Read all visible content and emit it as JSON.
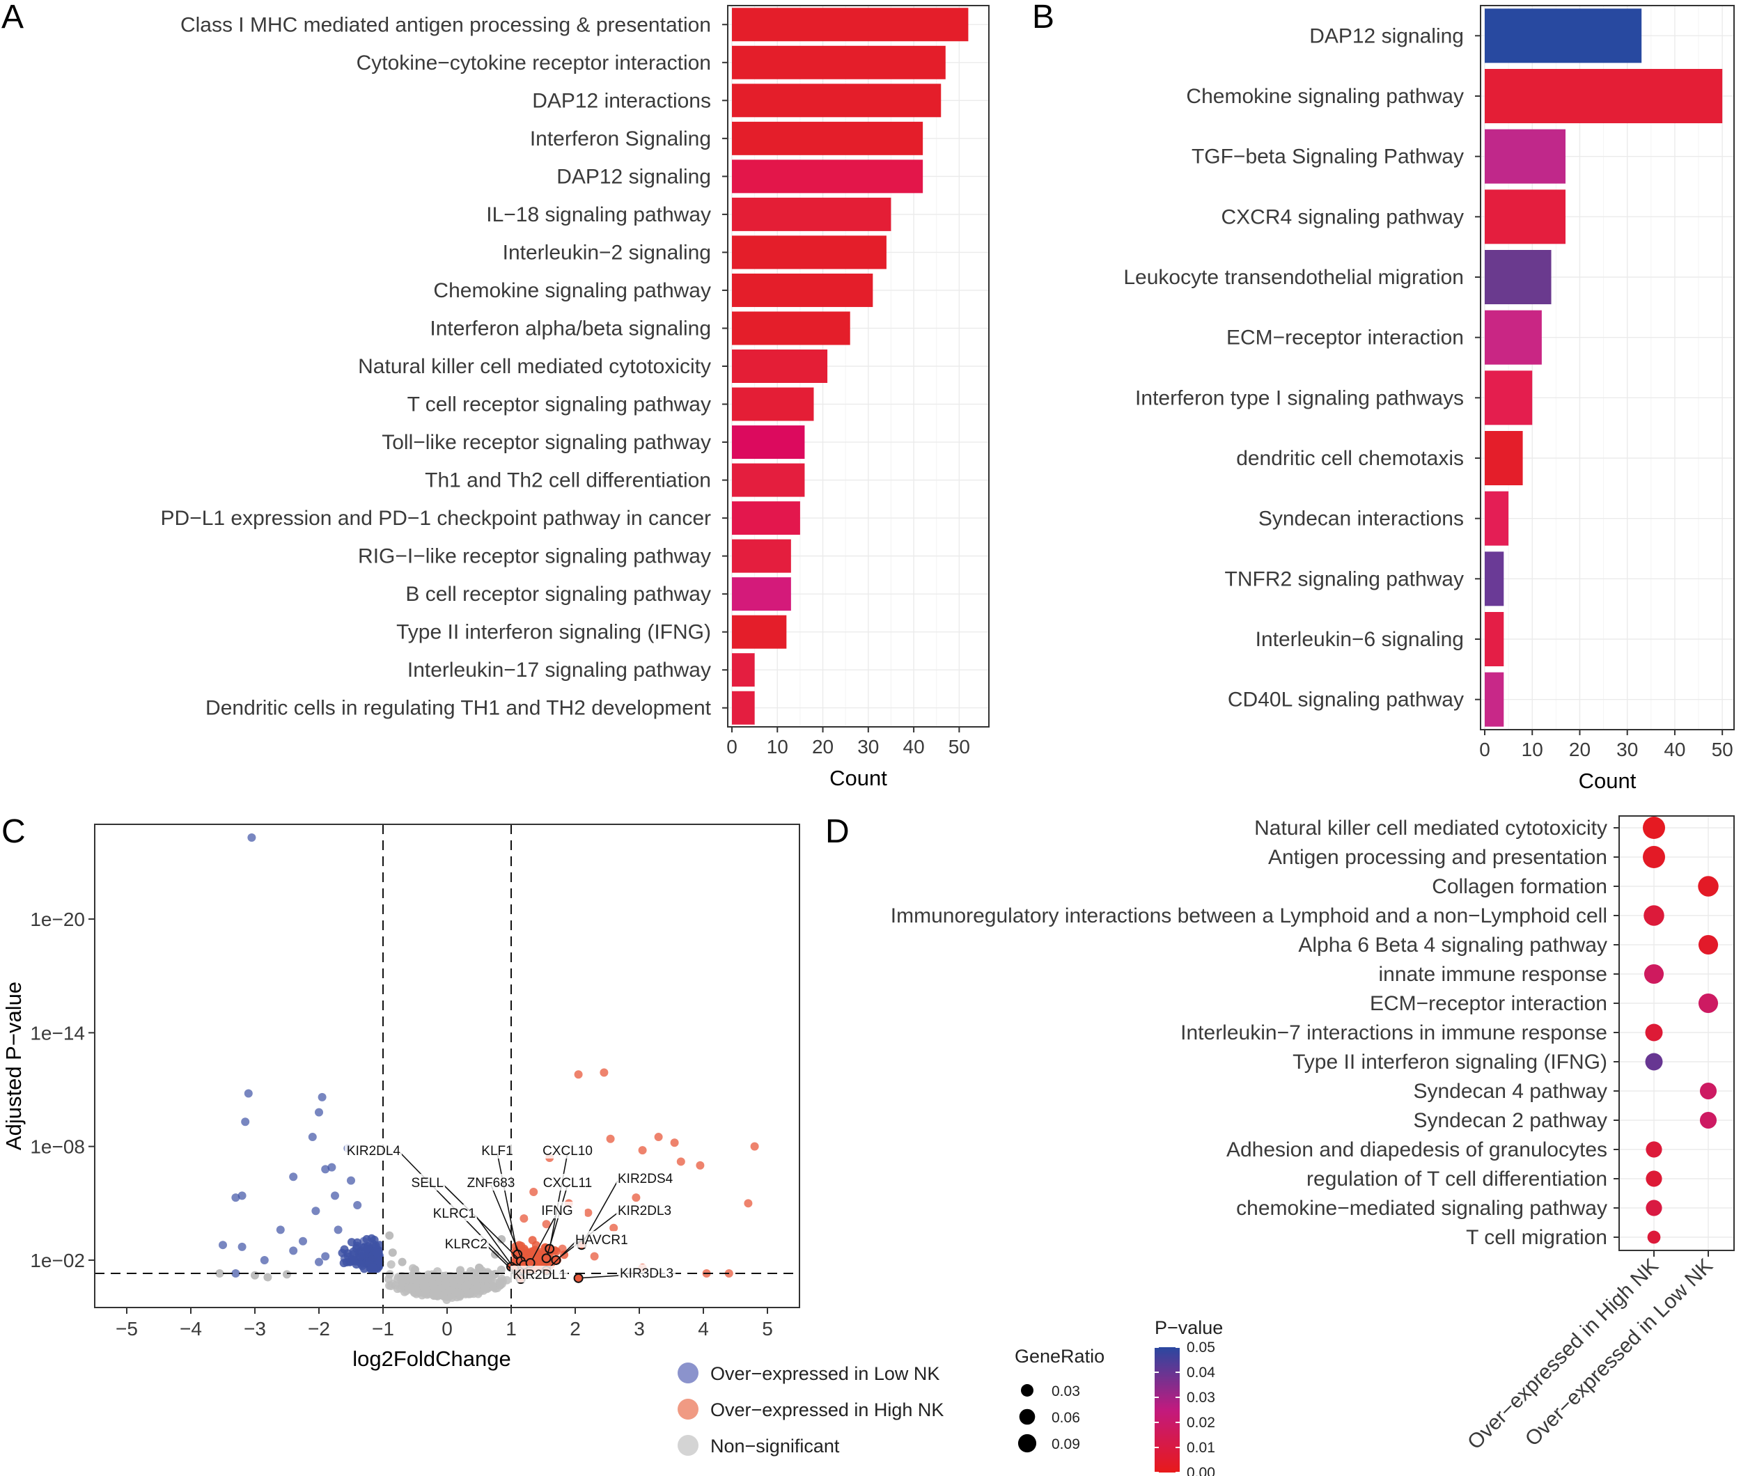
{
  "panels": {
    "A": {
      "label": "A",
      "chart_data": {
        "type": "bar",
        "orientation": "horizontal",
        "categories": [
          "Class I MHC mediated antigen processing & presentation",
          "Cytokine−cytokine receptor interaction",
          "DAP12 interactions",
          "Interferon Signaling",
          "DAP12 signaling",
          "IL−18 signaling pathway",
          "Interleukin−2 signaling",
          "Chemokine signaling pathway",
          "Interferon alpha/beta signaling",
          "Natural killer cell mediated cytotoxicity",
          "T cell receptor signaling pathway",
          "Toll−like receptor signaling pathway",
          "Th1 and Th2 cell differentiation",
          "PD−L1 expression and PD−1 checkpoint pathway in cancer",
          "RIG−I−like receptor signaling pathway",
          "B cell receptor signaling pathway",
          "Type II interferon signaling (IFNG)",
          "Interleukin−17 signaling pathway",
          "Dendritic cells in regulating TH1 and TH2 development"
        ],
        "values": [
          52,
          47,
          46,
          42,
          42,
          35,
          34,
          31,
          26,
          21,
          18,
          16,
          16,
          15,
          13,
          13,
          12,
          5,
          5
        ],
        "colors": [
          "#e41e2a",
          "#e41e2a",
          "#e41e2a",
          "#e41e2a",
          "#e3164a",
          "#e41e36",
          "#e41e2a",
          "#e41e2a",
          "#e41e2a",
          "#e41e36",
          "#e41e36",
          "#dc0a5e",
          "#e41e3e",
          "#e3174d",
          "#e41e3e",
          "#d41a7a",
          "#e41e2a",
          "#e41e40",
          "#e41e40"
        ],
        "xlabel": "Count",
        "ylabel": "",
        "xlim": [
          0,
          55
        ],
        "xticks": [
          0,
          10,
          20,
          30,
          40,
          50
        ]
      }
    },
    "B": {
      "label": "B",
      "chart_data": {
        "type": "bar",
        "orientation": "horizontal",
        "categories": [
          "DAP12 signaling",
          "Chemokine signaling pathway",
          "TGF−beta Signaling Pathway",
          "CXCR4 signaling pathway",
          "Leukocyte transendothelial migration",
          "ECM−receptor interaction",
          "Interferon type I signaling pathways",
          "dendritic cell chemotaxis",
          "Syndecan interactions",
          "TNFR2 signaling pathway",
          "Interleukin−6 signaling",
          "CD40L signaling pathway"
        ],
        "values": [
          33,
          50,
          17,
          17,
          14,
          12,
          10,
          8,
          5,
          4,
          4,
          4
        ],
        "colors": [
          "#2849a0",
          "#e41e36",
          "#c0288a",
          "#e41e3e",
          "#6a3a8e",
          "#c92684",
          "#e41e4e",
          "#e41e2a",
          "#e41e55",
          "#6a3a96",
          "#e41e46",
          "#c82888"
        ],
        "xlabel": "Count",
        "ylabel": "",
        "xlim": [
          0,
          51
        ],
        "xticks": [
          0,
          10,
          20,
          30,
          40,
          50
        ]
      }
    },
    "C": {
      "label": "C",
      "chart_data": {
        "type": "scatter",
        "title": "",
        "xlabel": "log2FoldChange",
        "ylabel": "Adjusted P−value",
        "xlim": [
          -5.5,
          5.5
        ],
        "xticks": [
          -5,
          -4,
          -3,
          -2,
          -1,
          0,
          1,
          2,
          3,
          4,
          5
        ],
        "xtick_labels": [
          "−5",
          "−4",
          "−3",
          "−2",
          "−1",
          "0",
          "1",
          "2",
          "3",
          "4",
          "5"
        ],
        "y_scale": "-log10",
        "ylim_neglog10": [
          -0.5,
          25
        ],
        "yticks_neglog10": [
          2,
          8,
          14,
          20
        ],
        "ytick_labels": [
          "1e−02",
          "1e−08",
          "1e−14",
          "1e−20"
        ],
        "thresholds": {
          "log2fc": [
            -1,
            1
          ],
          "neglog10_padj": 1.3
        },
        "series": [
          {
            "name": "Over−expressed in Low NK",
            "color": "#3e52a5",
            "points": [
              {
                "x": -3.05,
                "y": 24.3
              },
              {
                "x": -3.1,
                "y": 10.8
              },
              {
                "x": -3.15,
                "y": 9.3
              },
              {
                "x": -1.95,
                "y": 10.6
              },
              {
                "x": -2.0,
                "y": 9.8
              },
              {
                "x": -3.3,
                "y": 5.3
              },
              {
                "x": -3.2,
                "y": 5.4
              },
              {
                "x": -2.1,
                "y": 8.5
              },
              {
                "x": -1.55,
                "y": 7.9
              },
              {
                "x": -2.4,
                "y": 6.4
              },
              {
                "x": -1.9,
                "y": 6.8
              },
              {
                "x": -1.8,
                "y": 6.9
              },
              {
                "x": -2.6,
                "y": 3.6
              },
              {
                "x": -3.5,
                "y": 2.8
              },
              {
                "x": -3.2,
                "y": 2.7
              },
              {
                "x": -1.75,
                "y": 5.4
              },
              {
                "x": -1.5,
                "y": 6.2
              },
              {
                "x": -1.4,
                "y": 4.9
              },
              {
                "x": -2.85,
                "y": 2.0
              },
              {
                "x": -2.25,
                "y": 3.0
              },
              {
                "x": -2.05,
                "y": 4.6
              },
              {
                "x": -1.7,
                "y": 3.6
              },
              {
                "x": -1.3,
                "y": 3.0
              },
              {
                "x": -1.25,
                "y": 2.6
              },
              {
                "x": -1.1,
                "y": 2.4
              },
              {
                "x": -1.6,
                "y": 2.1
              },
              {
                "x": -3.3,
                "y": 1.3
              },
              {
                "x": -2.4,
                "y": 2.5
              },
              {
                "x": -1.05,
                "y": 1.9
              },
              {
                "x": -1.15,
                "y": 1.6
              },
              {
                "x": -2.0,
                "y": 1.9
              },
              {
                "x": -1.9,
                "y": 2.2
              }
            ]
          },
          {
            "name": "Over−expressed in High NK",
            "color": "#e85a3c",
            "points": [
              {
                "x": 2.05,
                "y": 11.8
              },
              {
                "x": 2.45,
                "y": 11.9
              },
              {
                "x": 3.3,
                "y": 8.5
              },
              {
                "x": 3.55,
                "y": 8.2
              },
              {
                "x": 3.65,
                "y": 7.2
              },
              {
                "x": 2.55,
                "y": 8.4
              },
              {
                "x": 3.05,
                "y": 7.8
              },
              {
                "x": 4.8,
                "y": 8.0
              },
              {
                "x": 3.95,
                "y": 7.0
              },
              {
                "x": 1.6,
                "y": 7.4
              },
              {
                "x": 2.95,
                "y": 5.3
              },
              {
                "x": 4.7,
                "y": 5.0
              },
              {
                "x": 4.05,
                "y": 1.3
              },
              {
                "x": 4.4,
                "y": 1.3
              },
              {
                "x": 1.35,
                "y": 5.6
              },
              {
                "x": 1.9,
                "y": 5.0
              },
              {
                "x": 2.2,
                "y": 4.5
              },
              {
                "x": 2.6,
                "y": 3.7
              },
              {
                "x": 1.2,
                "y": 4.2
              },
              {
                "x": 1.55,
                "y": 3.9
              },
              {
                "x": 2.3,
                "y": 2.2
              },
              {
                "x": 1.8,
                "y": 2.6
              },
              {
                "x": 3.05,
                "y": 1.6
              }
            ]
          },
          {
            "name": "Non−significant",
            "color": "#bdbdbd",
            "points": [
              {
                "x": -3.0,
                "y": 1.2
              },
              {
                "x": -2.8,
                "y": 1.1
              },
              {
                "x": -2.5,
                "y": 1.25
              },
              {
                "x": -0.85,
                "y": 2.4
              },
              {
                "x": -0.9,
                "y": 3.3
              },
              {
                "x": -0.7,
                "y": 1.9
              },
              {
                "x": 0.75,
                "y": 2.3
              },
              {
                "x": 0.85,
                "y": 3.1
              },
              {
                "x": -0.5,
                "y": 1.5
              },
              {
                "x": 0.5,
                "y": 1.6
              },
              {
                "x": -3.55,
                "y": 1.3
              }
            ]
          }
        ],
        "labeled_genes": [
          "KIR2DL4",
          "KLF1",
          "CXCL10",
          "SELL",
          "ZNF683",
          "CXCL11",
          "KIR2DS4",
          "IFNG",
          "KIR2DL3",
          "KLRC1",
          "HAVCR1",
          "KLRC2",
          "KIR2DL1",
          "KIR3DL3"
        ],
        "legend": [
          {
            "label": "Over−expressed in Low NK",
            "color": "#8b93cc"
          },
          {
            "label": "Over−expressed in High NK",
            "color": "#f09a83"
          },
          {
            "label": "Non−significant",
            "color": "#d4d4d4"
          }
        ]
      }
    },
    "D": {
      "label": "D",
      "chart_data": {
        "type": "scatter",
        "subtype": "dotplot",
        "categories": [
          "Natural killer cell mediated cytotoxicity",
          "Antigen processing and presentation",
          "Collagen formation",
          "Immunoregulatory interactions between a Lymphoid and a non−Lymphoid cell",
          "Alpha 6 Beta 4 signaling pathway",
          "innate immune response",
          "ECM−receptor interaction",
          "Interleukin−7 interactions in immune response",
          "Type II interferon signaling (IFNG)",
          "Syndecan 4 pathway",
          "Syndecan 2 pathway",
          "Adhesion and diapedesis of granulocytes",
          "regulation of T cell differentiation",
          "chemokine−mediated signaling pathway",
          "T cell migration"
        ],
        "groups": [
          "Over−expressed in High NK",
          "Over−expressed in Low NK"
        ],
        "points": [
          {
            "category": 0,
            "group": 0,
            "gene_ratio": 0.1,
            "pvalue": 0.002
          },
          {
            "category": 1,
            "group": 0,
            "gene_ratio": 0.1,
            "pvalue": 0.003
          },
          {
            "category": 2,
            "group": 1,
            "gene_ratio": 0.08,
            "pvalue": 0.003
          },
          {
            "category": 3,
            "group": 0,
            "gene_ratio": 0.08,
            "pvalue": 0.008
          },
          {
            "category": 4,
            "group": 1,
            "gene_ratio": 0.07,
            "pvalue": 0.004
          },
          {
            "category": 5,
            "group": 0,
            "gene_ratio": 0.07,
            "pvalue": 0.017
          },
          {
            "category": 6,
            "group": 1,
            "gene_ratio": 0.07,
            "pvalue": 0.018
          },
          {
            "category": 7,
            "group": 0,
            "gene_ratio": 0.05,
            "pvalue": 0.007
          },
          {
            "category": 8,
            "group": 0,
            "gene_ratio": 0.05,
            "pvalue": 0.04
          },
          {
            "category": 9,
            "group": 1,
            "gene_ratio": 0.045,
            "pvalue": 0.018
          },
          {
            "category": 10,
            "group": 1,
            "gene_ratio": 0.045,
            "pvalue": 0.018
          },
          {
            "category": 11,
            "group": 0,
            "gene_ratio": 0.04,
            "pvalue": 0.008
          },
          {
            "category": 12,
            "group": 0,
            "gene_ratio": 0.04,
            "pvalue": 0.007
          },
          {
            "category": 13,
            "group": 0,
            "gene_ratio": 0.04,
            "pvalue": 0.01
          },
          {
            "category": 14,
            "group": 0,
            "gene_ratio": 0.02,
            "pvalue": 0.008
          }
        ],
        "size_legend": {
          "title": "GeneRatio",
          "values": [
            0.03,
            0.06,
            0.09
          ],
          "labels": [
            "0.03",
            "0.06",
            "0.09"
          ]
        },
        "color_legend": {
          "title": "P−value",
          "range": [
            0.0,
            0.05
          ],
          "ticks": [
            "0.05",
            "0.04",
            "0.03",
            "0.02",
            "0.01",
            "0.00"
          ],
          "low_color": "#e81a1a",
          "mid_color": "#c21a7e",
          "high_color": "#2a48a0"
        }
      }
    }
  }
}
